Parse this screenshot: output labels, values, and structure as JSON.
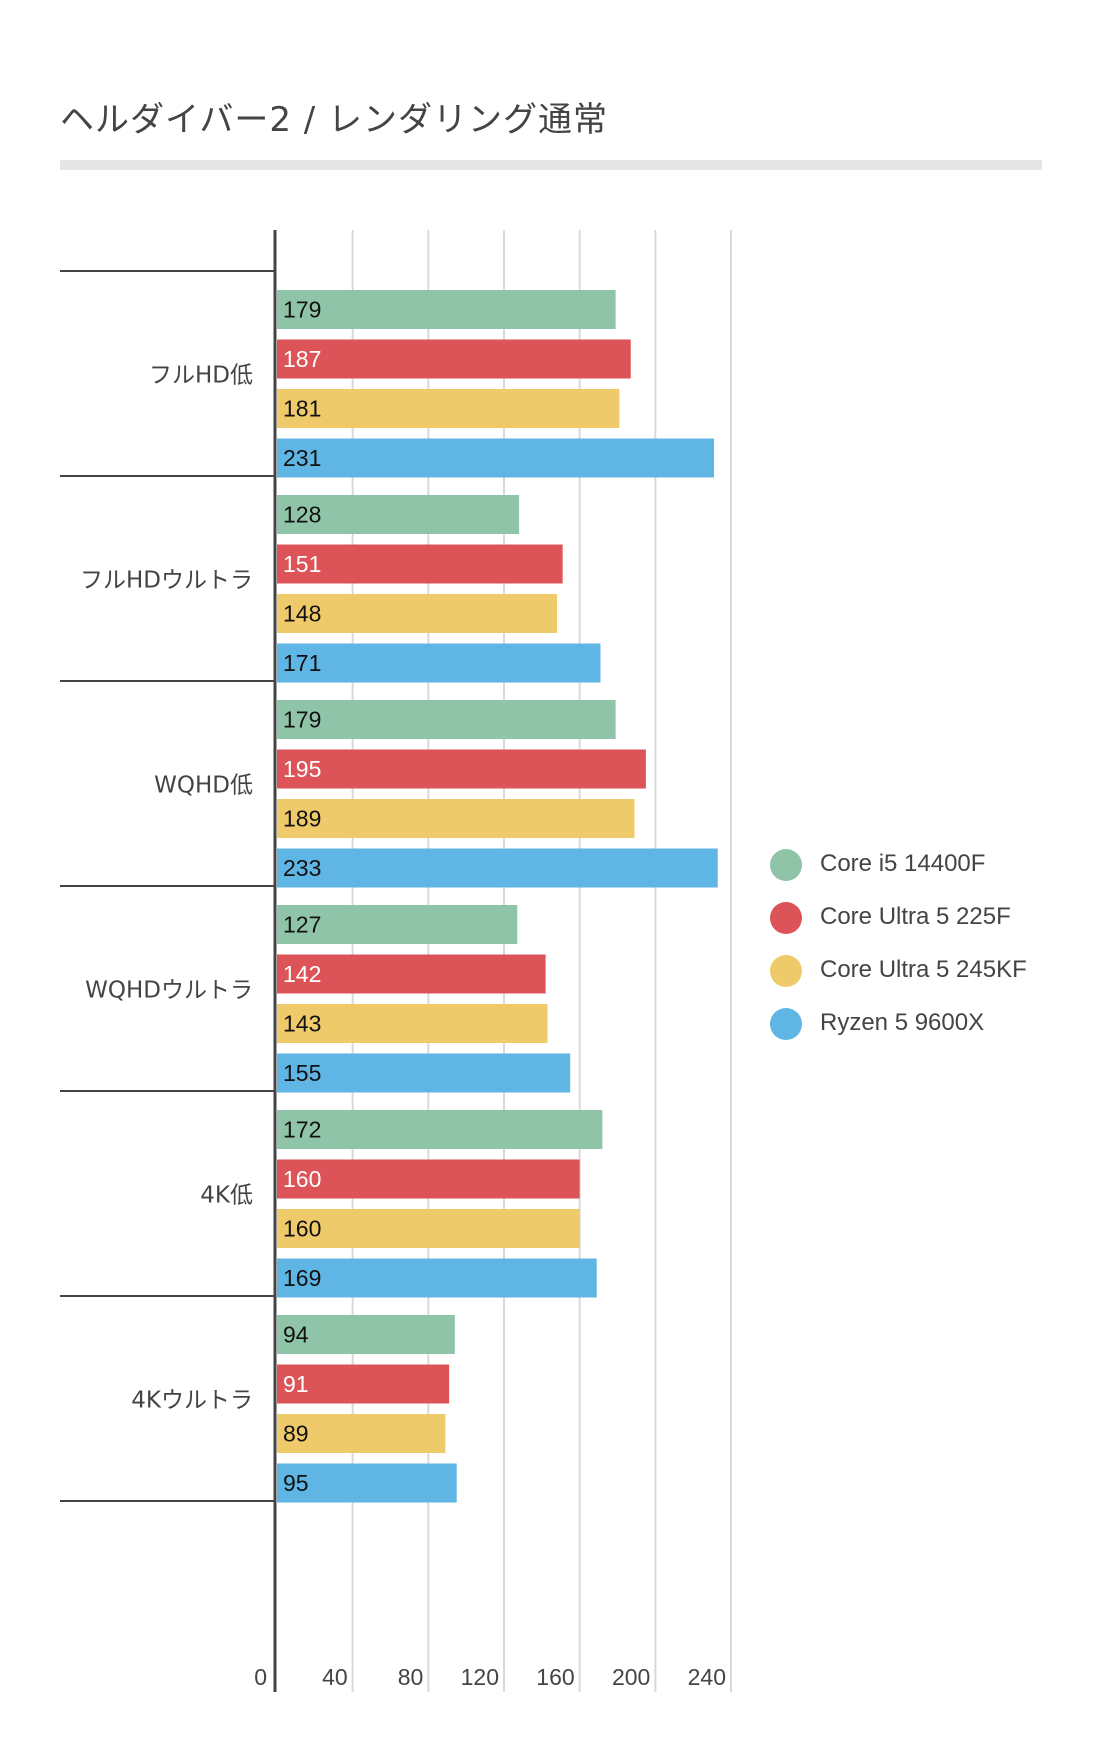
{
  "title": "ヘルダイバー2 / レンダリング通常",
  "legend": [
    {
      "label": "Core i5 14400F",
      "color": "#8fc4a8"
    },
    {
      "label": "Core Ultra 5 225F",
      "color": "#dc5457"
    },
    {
      "label": "Core Ultra 5 245KF",
      "color": "#efca6a"
    },
    {
      "label": "Ryzen 5 9600X",
      "color": "#5fb6e4"
    }
  ],
  "chart_data": {
    "type": "bar",
    "orientation": "horizontal",
    "title": "ヘルダイバー2 / レンダリング通常",
    "xlabel": "",
    "ylabel": "",
    "categories": [
      "フルHD低",
      "フルHDウルトラ",
      "WQHD低",
      "WQHDウルトラ",
      "4K低",
      "4Kウルトラ"
    ],
    "series": [
      {
        "name": "Core i5 14400F",
        "color": "#8fc4a8",
        "label_color": "#111111",
        "values": [
          179,
          128,
          179,
          127,
          172,
          94
        ]
      },
      {
        "name": "Core Ultra 5 225F",
        "color": "#dc5457",
        "label_color": "#ffffff",
        "values": [
          187,
          151,
          195,
          142,
          160,
          91
        ]
      },
      {
        "name": "Core Ultra 5 245KF",
        "color": "#efca6a",
        "label_color": "#111111",
        "values": [
          181,
          148,
          189,
          143,
          160,
          89
        ]
      },
      {
        "name": "Ryzen 5 9600X",
        "color": "#5fb6e4",
        "label_color": "#111111",
        "values": [
          231,
          171,
          233,
          155,
          169,
          95
        ]
      }
    ],
    "xlim": [
      0,
      240
    ],
    "xticks": [
      0,
      40,
      80,
      120,
      160,
      200,
      240
    ],
    "grid": true,
    "legend_position": "right"
  }
}
